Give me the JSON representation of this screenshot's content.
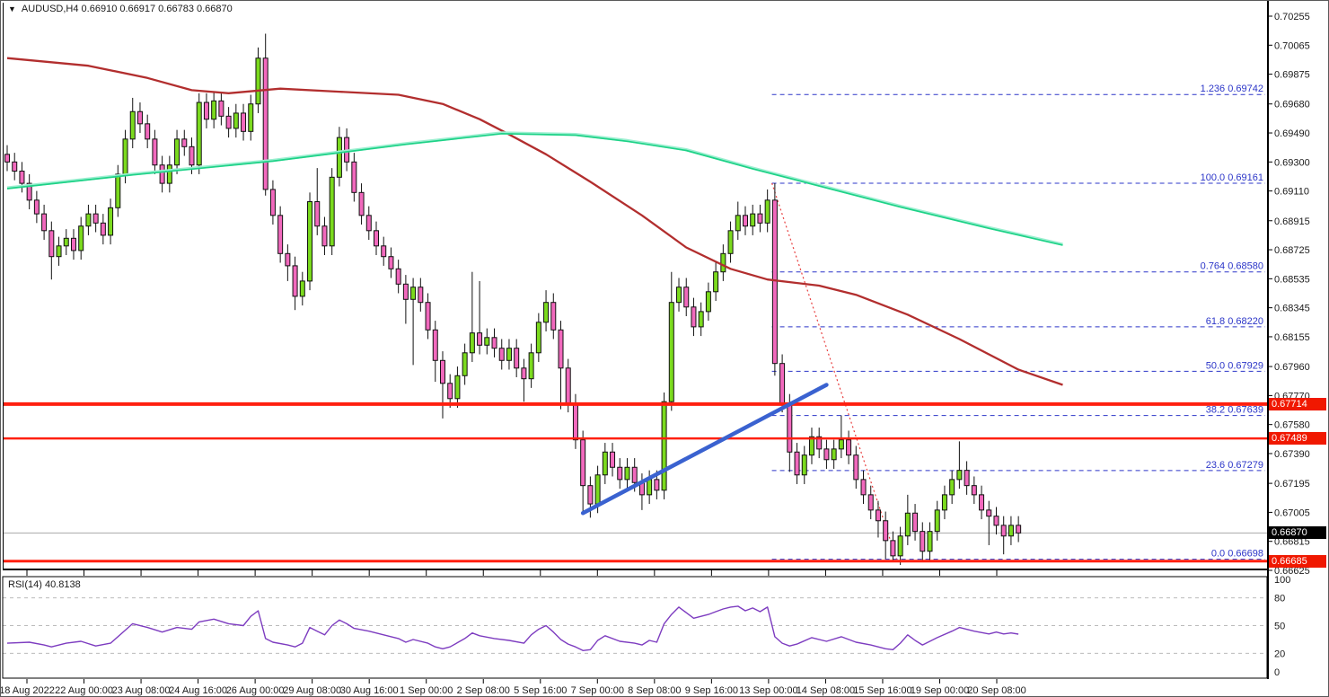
{
  "header": {
    "symbol": "AUDUSD",
    "timeframe": "H4",
    "title": "AUDUSD,H4 0.66910 0.66917 0.66783 0.66870",
    "ohlc": {
      "open": "0.66910",
      "high": "0.66917",
      "low": "0.66783",
      "close": "0.66870"
    }
  },
  "colors": {
    "background": "#ffffff",
    "frame": "#000000",
    "axis_text": "#1a1a1a",
    "bull": "#7bda1e",
    "bear": "#f169bd",
    "wick": "#111111",
    "ma_fast": "#1ed287",
    "ma_fast_light": "#9befd0",
    "ma_slow": "#b22e2e",
    "trendline": "#3a62d0",
    "fib": "#2b35c8",
    "fib_diagonal": "#e84040",
    "hline": "#ff2010",
    "badge_red": "#f01800",
    "badge_black": "#000000",
    "current_price_line": "#a9a9a9",
    "rsi_line": "#7d3cc0",
    "rsi_grid": "#bbbbbb"
  },
  "chart_data": {
    "type": "candlestick",
    "symbol": "AUDUSD",
    "timeframe": "H4",
    "price_axis": {
      "ticks": [
        "0.70255",
        "0.70065",
        "0.69875",
        "0.69680",
        "0.69490",
        "0.69300",
        "0.69110",
        "0.68915",
        "0.68725",
        "0.68535",
        "0.68345",
        "0.68155",
        "0.67960",
        "0.67770",
        "0.67580",
        "0.67390",
        "0.67195",
        "0.67005",
        "0.66815",
        "0.66625"
      ],
      "top_value": 0.70255,
      "bottom_value": 0.66625
    },
    "time_axis": {
      "labels": [
        "18 Aug 2022",
        "22 Aug 00:00",
        "23 Aug 08:00",
        "24 Aug 16:00",
        "26 Aug 00:00",
        "29 Aug 08:00",
        "30 Aug 16:00",
        "1 Sep 00:00",
        "2 Sep 08:00",
        "5 Sep 16:00",
        "7 Sep 00:00",
        "8 Sep 08:00",
        "9 Sep 16:00",
        "13 Sep 00:00",
        "14 Sep 08:00",
        "15 Sep 16:00",
        "19 Sep 00:00",
        "20 Sep 08:00"
      ]
    },
    "candles": {
      "first_open": 0.6935,
      "default_wick": 0.0006,
      "closes": [
        0.693,
        0.6924,
        0.6916,
        0.6905,
        0.6896,
        0.6885,
        0.6868,
        0.6875,
        0.688,
        0.6872,
        0.6888,
        0.6896,
        0.689,
        0.6882,
        0.69,
        0.6922,
        0.6945,
        0.6963,
        0.6955,
        0.6945,
        0.6928,
        0.6916,
        0.6928,
        0.6945,
        0.694,
        0.6928,
        0.6969,
        0.6958,
        0.697,
        0.696,
        0.6952,
        0.6962,
        0.695,
        0.6968,
        0.6998,
        0.6912,
        0.6895,
        0.687,
        0.6862,
        0.6842,
        0.6852,
        0.6904,
        0.6888,
        0.6875,
        0.692,
        0.6946,
        0.693,
        0.691,
        0.6895,
        0.6885,
        0.6875,
        0.6868,
        0.686,
        0.685,
        0.684,
        0.6848,
        0.6838,
        0.682,
        0.68,
        0.6785,
        0.6775,
        0.679,
        0.6805,
        0.6818,
        0.681,
        0.6815,
        0.6808,
        0.68,
        0.6808,
        0.6795,
        0.6788,
        0.6805,
        0.6825,
        0.6838,
        0.682,
        0.6795,
        0.6772,
        0.6748,
        0.6718,
        0.6706,
        0.6725,
        0.674,
        0.673,
        0.6722,
        0.673,
        0.672,
        0.6712,
        0.6722,
        0.6715,
        0.6773,
        0.6838,
        0.6848,
        0.6835,
        0.6822,
        0.6832,
        0.6845,
        0.6858,
        0.687,
        0.6885,
        0.6895,
        0.6888,
        0.6896,
        0.689,
        0.6905,
        0.6798,
        0.6772,
        0.674,
        0.6725,
        0.6738,
        0.675,
        0.6742,
        0.6735,
        0.6742,
        0.6748,
        0.6738,
        0.6722,
        0.6712,
        0.6702,
        0.6695,
        0.6682,
        0.6672,
        0.6685,
        0.67,
        0.6688,
        0.6675,
        0.6688,
        0.6702,
        0.6712,
        0.6722,
        0.6728,
        0.6718,
        0.6712,
        0.6702,
        0.6698,
        0.6692,
        0.6685,
        0.6692,
        0.6687
      ],
      "wick_overrides": {
        "6": [
          null,
          0.6853
        ],
        "17": [
          0.6972,
          null
        ],
        "34": [
          0.7005,
          null
        ],
        "35": [
          0.7014,
          0.6908
        ],
        "38": [
          null,
          0.6852
        ],
        "39": [
          null,
          0.6833
        ],
        "42": [
          0.6926,
          null
        ],
        "45": [
          0.6953,
          null
        ],
        "54": [
          null,
          0.6824
        ],
        "55": [
          null,
          0.6797
        ],
        "58": [
          null,
          0.6786
        ],
        "59": [
          null,
          0.6762
        ],
        "63": [
          0.6858,
          null
        ],
        "64": [
          0.6852,
          null
        ],
        "70": [
          null,
          0.6773
        ],
        "73": [
          0.6846,
          null
        ],
        "75": [
          null,
          0.6768
        ],
        "78": [
          null,
          0.67
        ],
        "79": [
          null,
          0.6697
        ],
        "86": [
          null,
          0.6702
        ],
        "90": [
          0.6858,
          null
        ],
        "99": [
          0.6904,
          null
        ],
        "103": [
          0.6912,
          null
        ],
        "104": [
          0.69161,
          0.679
        ],
        "106": [
          null,
          0.6727
        ],
        "113": [
          0.6764,
          null
        ],
        "118": [
          null,
          0.6684
        ],
        "119": [
          null,
          0.667
        ],
        "120": [
          null,
          0.6668
        ],
        "122": [
          0.6712,
          null
        ],
        "124": [
          null,
          0.6668
        ],
        "129": [
          0.6747,
          null
        ],
        "133": [
          null,
          0.6679
        ],
        "135": [
          null,
          0.6673
        ]
      }
    },
    "moving_averages": [
      {
        "name": "ma-green-fast",
        "color_key": "ma_fast",
        "points": [
          [
            0,
            0.6913
          ],
          [
            17,
            0.6922
          ],
          [
            36,
            0.6931
          ],
          [
            54,
            0.6942
          ],
          [
            67,
            0.6949
          ],
          [
            77,
            0.6948
          ],
          [
            84,
            0.6944
          ],
          [
            92,
            0.6938
          ],
          [
            101,
            0.6926
          ],
          [
            109,
            0.6916
          ],
          [
            121,
            0.6901
          ],
          [
            133,
            0.6887
          ],
          [
            143,
            0.6876
          ]
        ]
      },
      {
        "name": "ma-red-slow",
        "color_key": "ma_slow",
        "points": [
          [
            0,
            0.6998
          ],
          [
            11,
            0.6993
          ],
          [
            19,
            0.6985
          ],
          [
            25,
            0.6977
          ],
          [
            30,
            0.6975
          ],
          [
            37,
            0.6978
          ],
          [
            45,
            0.6976
          ],
          [
            53,
            0.6974
          ],
          [
            59,
            0.6968
          ],
          [
            64,
            0.6958
          ],
          [
            68,
            0.6948
          ],
          [
            73,
            0.6935
          ],
          [
            79,
            0.6917
          ],
          [
            86,
            0.6895
          ],
          [
            92,
            0.6874
          ],
          [
            98,
            0.686
          ],
          [
            103,
            0.6853
          ],
          [
            110,
            0.6849
          ],
          [
            115,
            0.6843
          ],
          [
            122,
            0.683
          ],
          [
            129,
            0.6814
          ],
          [
            137,
            0.6794
          ],
          [
            143,
            0.6784
          ]
        ]
      }
    ],
    "fibonacci": {
      "anchor_start": {
        "bar": 103.6,
        "price": 0.69161
      },
      "anchor_end": {
        "bar": 120.5,
        "price": 0.66698
      },
      "levels": [
        {
          "ratio": "1.236",
          "price": 0.69742
        },
        {
          "ratio": "100.0",
          "price": 0.69161
        },
        {
          "ratio": "0.764",
          "price": 0.6858
        },
        {
          "ratio": "61.8",
          "price": 0.6822
        },
        {
          "ratio": "50.0",
          "price": 0.67929
        },
        {
          "ratio": "38.2",
          "price": 0.67639
        },
        {
          "ratio": "23.6",
          "price": 0.67279
        },
        {
          "ratio": "0.0",
          "price": 0.66698
        }
      ]
    },
    "horizontal_lines": [
      {
        "price": 0.67714,
        "badge": "0.67714",
        "thickness": 4
      },
      {
        "price": 0.67489,
        "badge": "0.67489",
        "thickness": 2.5
      },
      {
        "price": 0.66685,
        "badge": "0.66685",
        "thickness": 3
      }
    ],
    "trendline": {
      "from_bar": 78,
      "from_price": 0.67,
      "to_bar": 111,
      "to_price": 0.6784
    },
    "current_price": {
      "label": "0.66870",
      "price": 0.6687
    },
    "rsi": {
      "label": "RSI(14) 40.8138",
      "value": 40.8138,
      "grid_levels": [
        80,
        50,
        20
      ],
      "scale_labels": [
        "100",
        "80",
        "50",
        "20",
        "0"
      ],
      "scale_values": [
        100,
        80,
        50,
        20,
        0
      ],
      "points": [
        [
          0,
          31
        ],
        [
          3,
          32
        ],
        [
          5,
          29
        ],
        [
          6,
          27
        ],
        [
          8,
          31
        ],
        [
          10,
          33
        ],
        [
          12,
          28
        ],
        [
          14,
          31
        ],
        [
          16,
          45
        ],
        [
          17,
          52
        ],
        [
          19,
          48
        ],
        [
          21,
          43
        ],
        [
          23,
          48
        ],
        [
          25,
          46
        ],
        [
          26,
          54
        ],
        [
          28,
          57
        ],
        [
          30,
          52
        ],
        [
          32,
          50
        ],
        [
          33,
          60
        ],
        [
          34,
          66
        ],
        [
          35,
          36
        ],
        [
          36,
          32
        ],
        [
          38,
          29
        ],
        [
          39,
          27
        ],
        [
          40,
          31
        ],
        [
          41,
          48
        ],
        [
          42,
          44
        ],
        [
          43,
          40
        ],
        [
          44,
          50
        ],
        [
          45,
          56
        ],
        [
          46,
          52
        ],
        [
          47,
          47
        ],
        [
          49,
          44
        ],
        [
          51,
          40
        ],
        [
          53,
          36
        ],
        [
          54,
          32
        ],
        [
          55,
          35
        ],
        [
          57,
          31
        ],
        [
          58,
          27
        ],
        [
          59,
          25
        ],
        [
          60,
          27
        ],
        [
          62,
          36
        ],
        [
          63,
          42
        ],
        [
          64,
          39
        ],
        [
          66,
          36
        ],
        [
          68,
          34
        ],
        [
          70,
          31
        ],
        [
          71,
          40
        ],
        [
          72,
          46
        ],
        [
          73,
          50
        ],
        [
          74,
          43
        ],
        [
          75,
          35
        ],
        [
          76,
          30
        ],
        [
          77,
          27
        ],
        [
          78,
          23
        ],
        [
          79,
          24
        ],
        [
          80,
          34
        ],
        [
          81,
          39
        ],
        [
          83,
          33
        ],
        [
          85,
          31
        ],
        [
          86,
          29
        ],
        [
          87,
          34
        ],
        [
          88,
          32
        ],
        [
          89,
          52
        ],
        [
          90,
          62
        ],
        [
          91,
          70
        ],
        [
          92,
          64
        ],
        [
          93,
          58
        ],
        [
          95,
          62
        ],
        [
          96,
          65
        ],
        [
          97,
          68
        ],
        [
          98,
          70
        ],
        [
          99,
          71
        ],
        [
          100,
          66
        ],
        [
          101,
          69
        ],
        [
          102,
          65
        ],
        [
          103,
          70
        ],
        [
          104,
          38
        ],
        [
          105,
          31
        ],
        [
          106,
          28
        ],
        [
          107,
          30
        ],
        [
          109,
          37
        ],
        [
          111,
          33
        ],
        [
          113,
          38
        ],
        [
          115,
          32
        ],
        [
          117,
          29
        ],
        [
          119,
          25
        ],
        [
          120,
          24
        ],
        [
          121,
          31
        ],
        [
          122,
          40
        ],
        [
          123,
          34
        ],
        [
          124,
          29
        ],
        [
          126,
          37
        ],
        [
          128,
          44
        ],
        [
          129,
          48
        ],
        [
          131,
          44
        ],
        [
          133,
          41
        ],
        [
          134,
          43
        ],
        [
          135,
          41
        ],
        [
          136,
          42
        ],
        [
          137,
          40.8
        ]
      ]
    }
  }
}
